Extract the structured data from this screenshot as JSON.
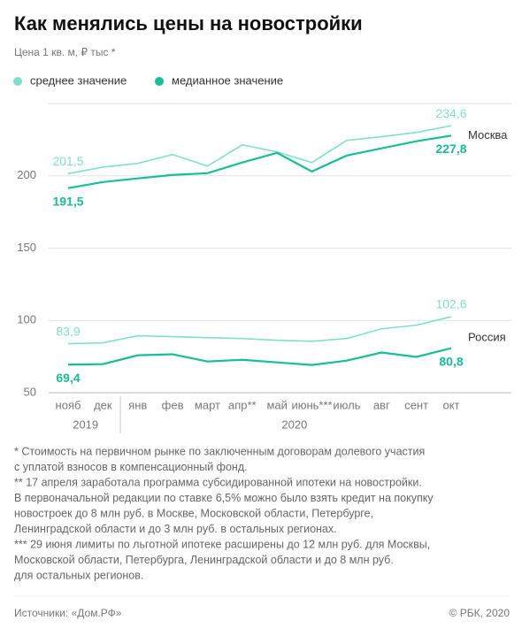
{
  "chart_data": {
    "type": "line",
    "title": "Как менялись цены на новостройки",
    "subtitle": "Цена 1 кв. м, ₽ тыс *",
    "legend": [
      {
        "name": "среднее значение",
        "color": "#7fe2c8"
      },
      {
        "name": "медианное значение",
        "color": "#14c094"
      }
    ],
    "categories": [
      "нояб",
      "дек",
      "янв",
      "фев",
      "март",
      "апр**",
      "май",
      "июнь***",
      "июль",
      "авг",
      "сент",
      "окт"
    ],
    "years": [
      "2019",
      "2020"
    ],
    "ylim": [
      50,
      250
    ],
    "yticks": [
      50,
      100,
      150,
      200
    ],
    "grid": true,
    "series": [
      {
        "name": "Москва",
        "lines": [
          {
            "values": [
              201.5,
              206,
              208.6,
              214.7,
              206.7,
              221.4,
              216.5,
              209.2,
              224.5,
              227,
              230,
              234.6
            ],
            "value_labels": [
              "201,5",
              null,
              null,
              null,
              null,
              null,
              null,
              null,
              null,
              null,
              null,
              "234,6"
            ]
          },
          {
            "values": [
              191.5,
              195.7,
              198.2,
              200.6,
              201.8,
              209.2,
              215.9,
              203,
              214,
              219,
              223.9,
              227.8
            ],
            "value_labels": [
              "191,5",
              null,
              null,
              null,
              null,
              null,
              null,
              null,
              null,
              null,
              null,
              "227,8"
            ]
          }
        ]
      },
      {
        "name": "Россия",
        "lines": [
          {
            "values": [
              83.9,
              84.5,
              89.4,
              88.8,
              88.1,
              87.5,
              86.3,
              85.6,
              87.5,
              94.2,
              96.7,
              102.6
            ],
            "value_labels": [
              "83,9",
              null,
              null,
              null,
              null,
              null,
              null,
              null,
              null,
              null,
              null,
              "102,6"
            ]
          },
          {
            "values": [
              69.4,
              69.8,
              75.9,
              76.6,
              71.6,
              72.8,
              71,
              69.2,
              72.2,
              77.8,
              74.8,
              80.8
            ],
            "value_labels": [
              "69,4",
              null,
              null,
              null,
              null,
              null,
              null,
              null,
              null,
              null,
              null,
              "80,8"
            ]
          }
        ]
      }
    ],
    "footnotes": [
      "* Стоимость на первичном рынке по заключенным договорам долевого участия",
      "с уплатой взносов в компенсационный фонд.",
      "** 17 апреля заработала программа субсидированной ипотеки на новостройки.",
      "В первоначальной редакции по ставке 6,5% можно было взять кредит на покупку",
      "новостроек до 8 млн руб. в Москве, Московской области, Петербурге,",
      "Ленинградской области и до 3 млн руб. в остальных регионах.",
      "*** 29 июня лимиты по льготной ипотеке расширены до 12 млн руб. для Москвы,",
      "Московской области, Петербурга, Ленинградской области и до 8 млн руб.",
      "для остальных регионов."
    ],
    "source": "Источники: «Дом.РФ»",
    "copyright": "© РБК, 2020"
  }
}
